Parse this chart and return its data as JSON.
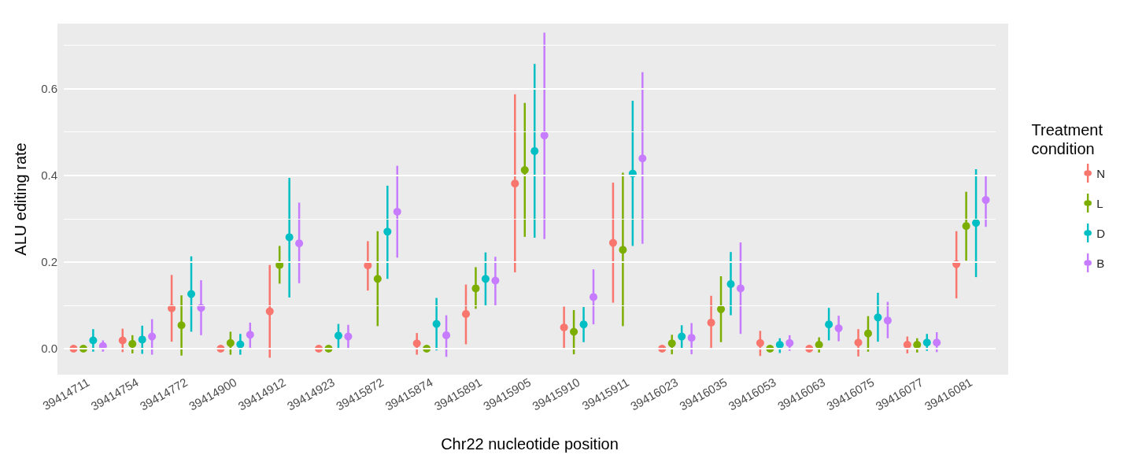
{
  "chart_data": {
    "type": "scatter",
    "xlabel": "Chr22 nucleotide position",
    "ylabel": "ALU editing rate",
    "legend_title": "Treatment\ncondition",
    "legend": "right",
    "grid": true,
    "marker": "circle",
    "categories": [
      "39414711",
      "39414754",
      "39414772",
      "39414900",
      "39414912",
      "39414923",
      "39415872",
      "39415874",
      "39415891",
      "39415905",
      "39415910",
      "39415911",
      "39416023",
      "39416035",
      "39416053",
      "39416063",
      "39416075",
      "39416077",
      "39416081"
    ],
    "ylim": [
      -0.06,
      0.75
    ],
    "yticks": [
      {
        "value": 0,
        "label": "0.0"
      },
      0.2,
      0.4,
      0.6
    ],
    "series": [
      {
        "name": "N",
        "color": "#f8766d",
        "values": [
          0,
          0.019,
          0.093,
          0,
          0.086,
          0,
          0.192,
          0.012,
          0.08,
          0.381,
          0.049,
          0.244,
          0,
          0.06,
          0.013,
          0,
          0.014,
          0.009,
          0.195
        ],
        "errors": [
          null,
          [
            -0.008,
            0.046
          ],
          [
            0.016,
            0.17
          ],
          null,
          [
            -0.021,
            0.193
          ],
          null,
          [
            0.134,
            0.248
          ],
          [
            -0.014,
            0.036
          ],
          [
            0.01,
            0.148
          ],
          [
            0.176,
            0.587
          ],
          [
            0.0,
            0.097
          ],
          [
            0.106,
            0.383
          ],
          null,
          [
            -0.001,
            0.122
          ],
          [
            -0.017,
            0.041
          ],
          null,
          [
            -0.018,
            0.045
          ],
          [
            -0.011,
            0.028
          ],
          [
            0.116,
            0.271
          ]
        ]
      },
      {
        "name": "L",
        "color": "#7cae00",
        "values": [
          0,
          0.011,
          0.054,
          0.013,
          0.193,
          0,
          0.161,
          0,
          0.139,
          0.412,
          0.039,
          0.228,
          0.012,
          0.091,
          0,
          0.009,
          0.035,
          0.009,
          0.283
        ],
        "errors": [
          null,
          [
            -0.011,
            0.031
          ],
          [
            -0.016,
            0.123
          ],
          [
            -0.014,
            0.039
          ],
          [
            0.15,
            0.237
          ],
          null,
          [
            0.052,
            0.271
          ],
          null,
          [
            0.092,
            0.188
          ],
          [
            0.258,
            0.567
          ],
          [
            -0.013,
            0.089
          ],
          [
            0.052,
            0.406
          ],
          [
            -0.013,
            0.032
          ],
          [
            0.015,
            0.167
          ],
          null,
          [
            -0.009,
            0.026
          ],
          [
            -0.007,
            0.075
          ],
          [
            -0.009,
            0.024
          ],
          [
            0.203,
            0.362
          ]
        ]
      },
      {
        "name": "D",
        "color": "#00bfc4",
        "values": [
          0.019,
          0.021,
          0.126,
          0.01,
          0.257,
          0.03,
          0.27,
          0.057,
          0.161,
          0.456,
          0.056,
          0.404,
          0.028,
          0.149,
          0.009,
          0.056,
          0.072,
          0.014,
          0.29
        ],
        "errors": [
          [
            -0.007,
            0.045
          ],
          [
            -0.012,
            0.053
          ],
          [
            0.039,
            0.213
          ],
          [
            -0.014,
            0.034
          ],
          [
            0.118,
            0.394
          ],
          [
            0.001,
            0.057
          ],
          [
            0.161,
            0.376
          ],
          [
            -0.004,
            0.117
          ],
          [
            0.1,
            0.222
          ],
          [
            0.256,
            0.657
          ],
          [
            0.015,
            0.096
          ],
          [
            0.237,
            0.572
          ],
          [
            0.001,
            0.054
          ],
          [
            0.077,
            0.223
          ],
          [
            -0.01,
            0.024
          ],
          [
            0.019,
            0.094
          ],
          [
            0.016,
            0.129
          ],
          [
            -0.005,
            0.034
          ],
          [
            0.165,
            0.414
          ]
        ]
      },
      {
        "name": "B",
        "color": "#c77cff",
        "values": [
          0.006,
          0.028,
          0.094,
          0.032,
          0.243,
          0.028,
          0.316,
          0.031,
          0.157,
          0.492,
          0.119,
          0.439,
          0.025,
          0.139,
          0.013,
          0.047,
          0.065,
          0.014,
          0.343
        ],
        "errors": [
          [
            -0.007,
            0.019
          ],
          [
            -0.014,
            0.068
          ],
          [
            0.031,
            0.158
          ],
          [
            0.002,
            0.06
          ],
          [
            0.151,
            0.337
          ],
          [
            0.001,
            0.055
          ],
          [
            0.21,
            0.422
          ],
          [
            -0.019,
            0.077
          ],
          [
            0.1,
            0.212
          ],
          [
            0.253,
            0.729
          ],
          [
            0.056,
            0.183
          ],
          [
            0.242,
            0.638
          ],
          [
            -0.013,
            0.059
          ],
          [
            0.034,
            0.245
          ],
          [
            -0.005,
            0.031
          ],
          [
            0.017,
            0.076
          ],
          [
            0.024,
            0.108
          ],
          [
            -0.008,
            0.038
          ],
          [
            0.281,
            0.401
          ]
        ]
      }
    ]
  }
}
